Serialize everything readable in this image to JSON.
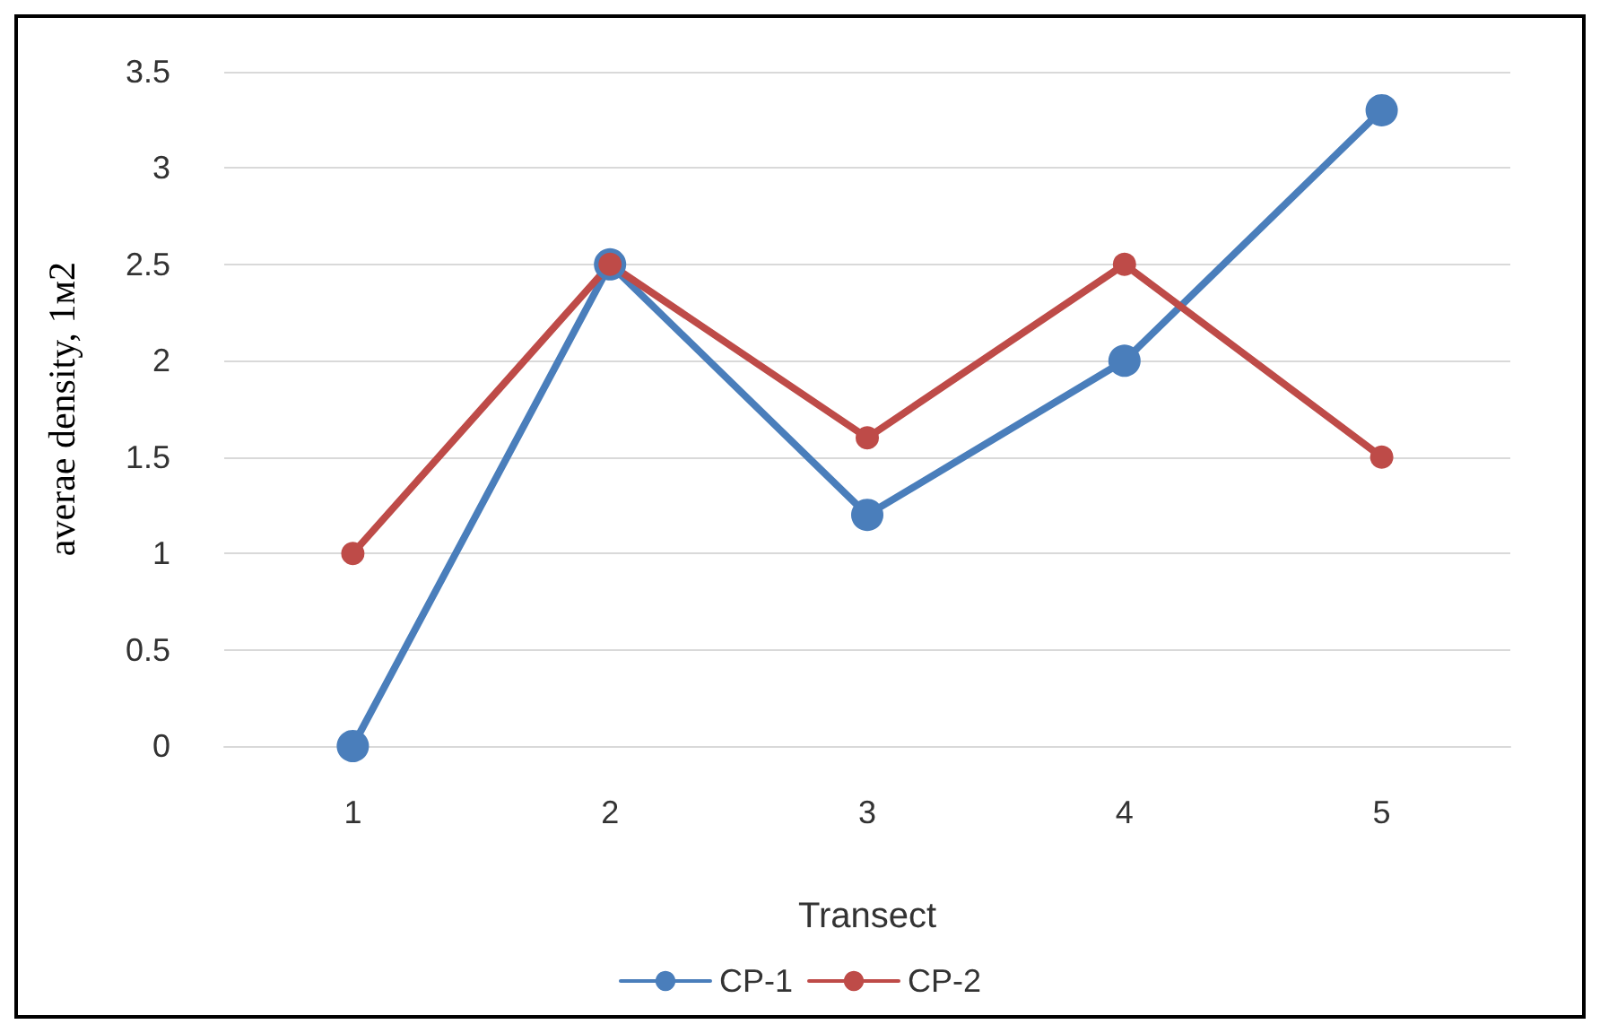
{
  "chart_data": {
    "type": "line",
    "xlabel": "Transect",
    "ylabel": "averae density, 1м2",
    "categories": [
      "1",
      "2",
      "3",
      "4",
      "5"
    ],
    "series": [
      {
        "name": "CP-1",
        "color": "#4a7ebb",
        "values": [
          0,
          2.5,
          1.2,
          2,
          3.3
        ]
      },
      {
        "name": "CP-2",
        "color": "#be4b48",
        "values": [
          1,
          2.5,
          1.6,
          2.5,
          1.5
        ]
      }
    ],
    "ylim": [
      0,
      3.5
    ],
    "yticks": [
      0,
      0.5,
      1,
      1.5,
      2,
      2.5,
      3,
      3.5
    ],
    "grid": "y",
    "legend": "bottom",
    "marker": "circle",
    "line_style": "solid"
  }
}
